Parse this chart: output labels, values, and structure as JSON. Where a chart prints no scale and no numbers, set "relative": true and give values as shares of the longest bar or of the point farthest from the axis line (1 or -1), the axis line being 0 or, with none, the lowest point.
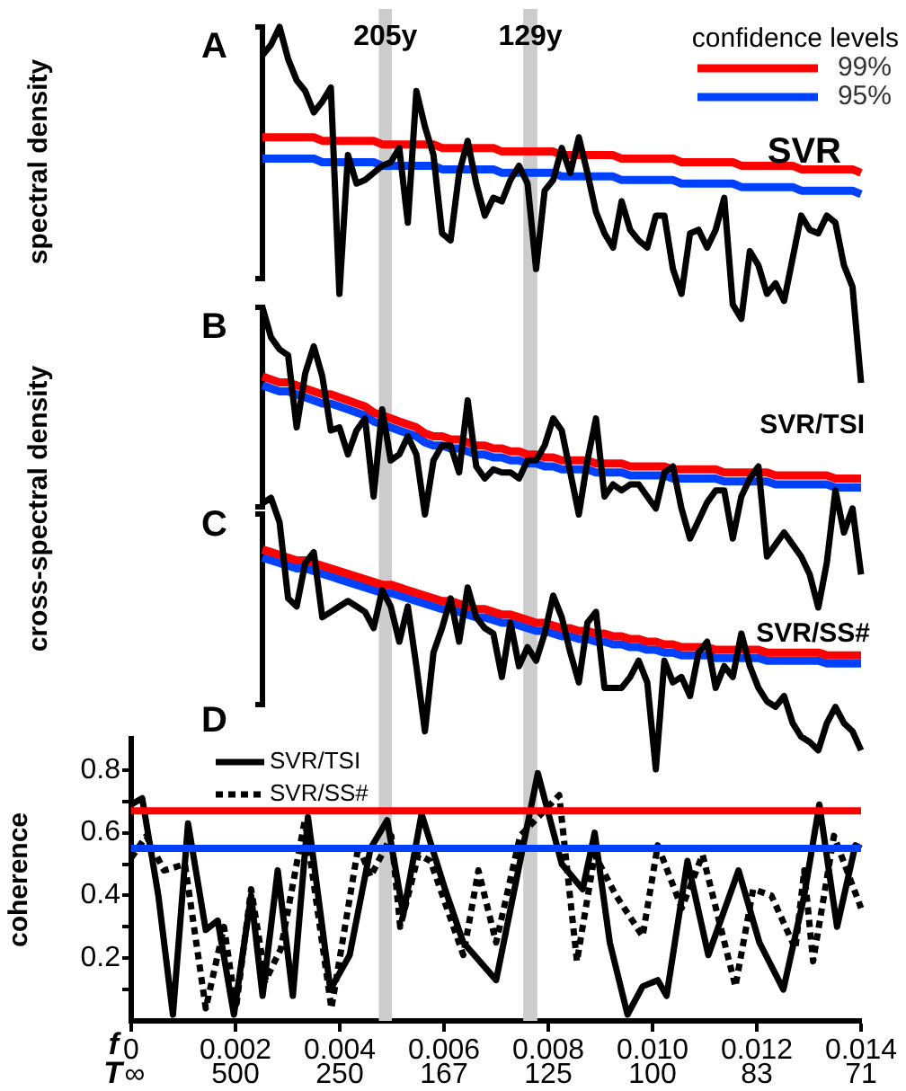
{
  "chart_data": [
    {
      "type": "line",
      "title": "A",
      "ylabel": "spectral density",
      "relative": true,
      "grid": false,
      "marker": "none",
      "legend": "top right",
      "legend_title": "confidence levels",
      "annotations": [
        "SVR"
      ],
      "categories": [
        null,
        null,
        null,
        null,
        null,
        null,
        null,
        null,
        null,
        null,
        null,
        null,
        null,
        null,
        null,
        null,
        null,
        null,
        null,
        null,
        null,
        null,
        null,
        null,
        null,
        null,
        null,
        null,
        null,
        null,
        null,
        null,
        null,
        null,
        null,
        null,
        null,
        null,
        null,
        null,
        null,
        null,
        null,
        null,
        null,
        null,
        null,
        null,
        null,
        null,
        null,
        null,
        null,
        null,
        null,
        null,
        null,
        null,
        null,
        null,
        null,
        null,
        null,
        null,
        null,
        null,
        null,
        null,
        null,
        null,
        null
      ],
      "series": [
        {
          "color": "#000000",
          "values": [
            0.92,
            0.95,
            1,
            0.91,
            0.85,
            0.82,
            0.76,
            0.79,
            0.83,
            0.25,
            0.64,
            0.56,
            0.57,
            0.59,
            0.61,
            0.62,
            0.66,
            0.45,
            0.82,
            0.72,
            0.64,
            0.42,
            0.4,
            0.59,
            0.68,
            0.56,
            0.47,
            0.52,
            0.51,
            0.57,
            0.61,
            0.56,
            0.32,
            0.54,
            0.57,
            0.66,
            0.59,
            0.69,
            0.59,
            0.48,
            0.42,
            0.38,
            0.51,
            0.43,
            0.4,
            0.38,
            0.47,
            0.47,
            0.32,
            0.25,
            0.42,
            0.43,
            0.38,
            0.43,
            0.52,
            0.22,
            0.18,
            0.37,
            0.33,
            0.25,
            0.28,
            0.23,
            0.35,
            0.47,
            0.43,
            0.42,
            0.47,
            0.45,
            0.33,
            0.27,
            0
          ]
        },
        {
          "name": "99%",
          "color": "#ff0000",
          "values": [
            0.69,
            0.69,
            0.69,
            0.69,
            0.69,
            0.69,
            0.69,
            0.68,
            0.68,
            0.68,
            0.68,
            0.68,
            0.68,
            0.68,
            0.67,
            0.67,
            0.67,
            0.67,
            0.67,
            0.67,
            0.67,
            0.66,
            0.66,
            0.66,
            0.66,
            0.66,
            0.66,
            0.66,
            0.65,
            0.65,
            0.65,
            0.65,
            0.65,
            0.65,
            0.65,
            0.64,
            0.64,
            0.64,
            0.64,
            0.64,
            0.64,
            0.64,
            0.63,
            0.63,
            0.63,
            0.63,
            0.63,
            0.63,
            0.63,
            0.62,
            0.62,
            0.62,
            0.62,
            0.62,
            0.62,
            0.62,
            0.61,
            0.61,
            0.61,
            0.61,
            0.61,
            0.61,
            0.61,
            0.6,
            0.6,
            0.6,
            0.6,
            0.6,
            0.6,
            0.6,
            0.59
          ]
        },
        {
          "name": "95%",
          "color": "#0040ff",
          "values": [
            0.63,
            0.63,
            0.63,
            0.63,
            0.63,
            0.63,
            0.63,
            0.62,
            0.62,
            0.62,
            0.62,
            0.62,
            0.62,
            0.62,
            0.61,
            0.61,
            0.61,
            0.61,
            0.61,
            0.61,
            0.61,
            0.6,
            0.6,
            0.6,
            0.6,
            0.6,
            0.6,
            0.6,
            0.59,
            0.59,
            0.59,
            0.59,
            0.59,
            0.59,
            0.59,
            0.58,
            0.58,
            0.58,
            0.58,
            0.58,
            0.58,
            0.58,
            0.57,
            0.57,
            0.57,
            0.57,
            0.57,
            0.57,
            0.57,
            0.56,
            0.56,
            0.56,
            0.56,
            0.56,
            0.56,
            0.56,
            0.55,
            0.55,
            0.55,
            0.55,
            0.55,
            0.55,
            0.55,
            0.54,
            0.54,
            0.54,
            0.54,
            0.54,
            0.54,
            0.54,
            0.53
          ]
        }
      ]
    },
    {
      "type": "line",
      "title": "B",
      "ylabel": "cross-spectral density",
      "relative": true,
      "grid": false,
      "marker": "none",
      "annotations": [
        "SVR/TSI"
      ],
      "categories": [
        null,
        null,
        null,
        null,
        null,
        null,
        null,
        null,
        null,
        null,
        null,
        null,
        null,
        null,
        null,
        null,
        null,
        null,
        null,
        null,
        null,
        null,
        null,
        null,
        null,
        null,
        null,
        null,
        null,
        null,
        null,
        null,
        null,
        null,
        null,
        null,
        null,
        null,
        null,
        null,
        null,
        null,
        null,
        null,
        null,
        null,
        null,
        null,
        null,
        null,
        null,
        null,
        null,
        null,
        null,
        null,
        null,
        null,
        null,
        null,
        null,
        null,
        null,
        null,
        null,
        null,
        null,
        null,
        null,
        null,
        null
      ],
      "series": [
        {
          "color": "#000000",
          "values": [
            1,
            0.9,
            0.86,
            0.84,
            0.6,
            0.78,
            0.87,
            0.77,
            0.59,
            0.6,
            0.51,
            0.59,
            0.63,
            0.37,
            0.66,
            0.49,
            0.51,
            0.57,
            0.51,
            0.31,
            0.49,
            0.54,
            0.54,
            0.45,
            0.69,
            0.47,
            0.43,
            0.46,
            0.45,
            0.45,
            0.43,
            0.49,
            0.49,
            0.54,
            0.63,
            0.59,
            0.45,
            0.31,
            0.49,
            0.63,
            0.37,
            0.41,
            0.39,
            0.41,
            0.41,
            0.37,
            0.33,
            0.45,
            0.47,
            0.33,
            0.23,
            0.29,
            0.35,
            0.39,
            0.39,
            0.23,
            0.37,
            0.43,
            0.47,
            0.17,
            0.21,
            0.25,
            0.21,
            0.17,
            0.11,
            0,
            0.15,
            0.39,
            0.25,
            0.33,
            0.11
          ]
        },
        {
          "color": "#ff0000",
          "values": [
            0.77,
            0.76,
            0.75,
            0.75,
            0.74,
            0.73,
            0.72,
            0.71,
            0.71,
            0.7,
            0.69,
            0.68,
            0.67,
            0.65,
            0.64,
            0.63,
            0.62,
            0.61,
            0.6,
            0.58,
            0.57,
            0.57,
            0.56,
            0.56,
            0.55,
            0.54,
            0.54,
            0.53,
            0.53,
            0.52,
            0.52,
            0.51,
            0.51,
            0.5,
            0.5,
            0.49,
            0.49,
            0.49,
            0.49,
            0.48,
            0.48,
            0.48,
            0.48,
            0.47,
            0.47,
            0.47,
            0.47,
            0.47,
            0.46,
            0.46,
            0.46,
            0.46,
            0.46,
            0.46,
            0.45,
            0.45,
            0.45,
            0.45,
            0.45,
            0.45,
            0.44,
            0.44,
            0.44,
            0.44,
            0.44,
            0.44,
            0.44,
            0.43,
            0.43,
            0.43,
            0.43
          ]
        },
        {
          "color": "#0040ff",
          "values": [
            0.74,
            0.73,
            0.72,
            0.72,
            0.71,
            0.7,
            0.69,
            0.68,
            0.68,
            0.67,
            0.66,
            0.65,
            0.64,
            0.62,
            0.61,
            0.6,
            0.59,
            0.58,
            0.57,
            0.55,
            0.54,
            0.54,
            0.53,
            0.53,
            0.52,
            0.51,
            0.51,
            0.5,
            0.5,
            0.49,
            0.49,
            0.48,
            0.48,
            0.47,
            0.47,
            0.46,
            0.46,
            0.46,
            0.46,
            0.45,
            0.45,
            0.45,
            0.45,
            0.44,
            0.44,
            0.44,
            0.44,
            0.44,
            0.43,
            0.43,
            0.43,
            0.43,
            0.43,
            0.43,
            0.42,
            0.42,
            0.42,
            0.42,
            0.42,
            0.42,
            0.41,
            0.41,
            0.41,
            0.41,
            0.41,
            0.41,
            0.41,
            0.4,
            0.4,
            0.4,
            0.4
          ]
        }
      ]
    },
    {
      "type": "line",
      "title": "C",
      "relative": true,
      "grid": false,
      "marker": "none",
      "annotations": [
        "SVR/SS#"
      ],
      "categories": [
        null,
        null,
        null,
        null,
        null,
        null,
        null,
        null,
        null,
        null,
        null,
        null,
        null,
        null,
        null,
        null,
        null,
        null,
        null,
        null,
        null,
        null,
        null,
        null,
        null,
        null,
        null,
        null,
        null,
        null,
        null,
        null,
        null,
        null,
        null,
        null,
        null,
        null,
        null,
        null,
        null,
        null,
        null,
        null,
        null,
        null,
        null,
        null,
        null,
        null,
        null,
        null,
        null,
        null,
        null,
        null,
        null,
        null,
        null,
        null,
        null,
        null,
        null,
        null,
        null,
        null,
        null,
        null,
        null,
        null,
        null
      ],
      "series": [
        {
          "color": "#000000",
          "values": [
            0.98,
            1,
            0.91,
            0.63,
            0.6,
            0.76,
            0.8,
            0.56,
            0.58,
            0.6,
            0.62,
            0.6,
            0.58,
            0.52,
            0.66,
            0.6,
            0.47,
            0.6,
            0.38,
            0.14,
            0.43,
            0.52,
            0.63,
            0.47,
            0.67,
            0.56,
            0.52,
            0.5,
            0.34,
            0.54,
            0.38,
            0.45,
            0.4,
            0.5,
            0.64,
            0.56,
            0.43,
            0.32,
            0.54,
            0.58,
            0.3,
            0.3,
            0.3,
            0.34,
            0.4,
            0.32,
            0,
            0.4,
            0.32,
            0.34,
            0.27,
            0.43,
            0.47,
            0.3,
            0.38,
            0.34,
            0.5,
            0.38,
            0.3,
            0.25,
            0.23,
            0.27,
            0.17,
            0.12,
            0.1,
            0.07,
            0.17,
            0.23,
            0.17,
            0.14,
            0.07
          ]
        },
        {
          "color": "#ff0000",
          "values": [
            0.81,
            0.8,
            0.79,
            0.78,
            0.77,
            0.77,
            0.76,
            0.75,
            0.74,
            0.73,
            0.72,
            0.71,
            0.7,
            0.69,
            0.68,
            0.68,
            0.67,
            0.66,
            0.65,
            0.64,
            0.63,
            0.62,
            0.62,
            0.61,
            0.6,
            0.59,
            0.59,
            0.58,
            0.57,
            0.57,
            0.56,
            0.55,
            0.54,
            0.54,
            0.53,
            0.52,
            0.52,
            0.51,
            0.51,
            0.5,
            0.5,
            0.49,
            0.49,
            0.48,
            0.48,
            0.47,
            0.47,
            0.46,
            0.46,
            0.45,
            0.45,
            0.45,
            0.45,
            0.44,
            0.44,
            0.44,
            0.44,
            0.44,
            0.44,
            0.43,
            0.43,
            0.43,
            0.43,
            0.43,
            0.43,
            0.43,
            0.42,
            0.42,
            0.42,
            0.42,
            0.42
          ]
        },
        {
          "color": "#0040ff",
          "values": [
            0.78,
            0.77,
            0.76,
            0.75,
            0.74,
            0.74,
            0.73,
            0.72,
            0.71,
            0.7,
            0.69,
            0.68,
            0.67,
            0.66,
            0.65,
            0.65,
            0.64,
            0.63,
            0.62,
            0.61,
            0.6,
            0.59,
            0.59,
            0.58,
            0.57,
            0.56,
            0.56,
            0.55,
            0.54,
            0.54,
            0.53,
            0.52,
            0.51,
            0.51,
            0.5,
            0.49,
            0.49,
            0.48,
            0.48,
            0.47,
            0.47,
            0.46,
            0.46,
            0.45,
            0.45,
            0.44,
            0.44,
            0.43,
            0.43,
            0.42,
            0.42,
            0.42,
            0.42,
            0.41,
            0.41,
            0.41,
            0.41,
            0.41,
            0.41,
            0.4,
            0.4,
            0.4,
            0.4,
            0.4,
            0.4,
            0.4,
            0.39,
            0.39,
            0.39,
            0.39,
            0.39
          ]
        }
      ]
    },
    {
      "type": "line",
      "title": "D",
      "ylabel": "coherence",
      "xlabel": "f",
      "xlim": [
        0,
        0.014
      ],
      "ylim": [
        0,
        0.9
      ],
      "grid": false,
      "marker": "none",
      "legend": "top left",
      "xticks": [
        0,
        0.002,
        0.004,
        0.006,
        0.008,
        {
          "value": 0.01,
          "label": "0.010"
        },
        0.012,
        0.014
      ],
      "yticks": [
        {
          "value": 0.1,
          "label": null
        },
        0.2,
        {
          "value": 0.3,
          "label": null
        },
        0.4,
        {
          "value": 0.5,
          "label": null
        },
        0.6,
        {
          "value": 0.7,
          "label": null
        },
        0.8
      ],
      "annotations": [
        "T",
        "∞",
        "500",
        "250",
        "167",
        "125",
        "100",
        "83",
        "71"
      ],
      "bands": [
        {
          "axis": "x",
          "from": 0.00475,
          "to": 0.005,
          "label": "205y",
          "color": "#cccccc"
        },
        {
          "axis": "x",
          "from": 0.00752,
          "to": 0.00779,
          "label": "129y",
          "color": "#cccccc"
        }
      ],
      "ref_lines": [
        {
          "axis": "y",
          "value": 0.67,
          "color": "#ff0000"
        },
        {
          "axis": "y",
          "value": 0.55,
          "color": "#0040ff"
        }
      ],
      "series": [
        {
          "name": "SVR/TSI",
          "color": "#000000",
          "line_style": "solid",
          "x": [
            0,
            0.00021,
            0.00052,
            0.0008,
            0.00109,
            0.00143,
            0.00166,
            0.00197,
            0.0023,
            0.00252,
            0.00281,
            0.0031,
            0.00339,
            0.00382,
            0.00419,
            0.00459,
            0.00491,
            0.00522,
            0.00557,
            0.00602,
            0.00637,
            0.007,
            0.0078,
            0.00826,
            0.00866,
            0.00889,
            0.00918,
            0.00952,
            0.00981,
            0.0101,
            0.01027,
            0.01067,
            0.01107,
            0.01165,
            0.01205,
            0.01251,
            0.01291,
            0.0132,
            0.01354,
            0.01389,
            0.014
          ],
          "values": [
            0.69,
            0.71,
            0.4,
            0.02,
            0.63,
            0.29,
            0.32,
            0.02,
            0.4,
            0.08,
            0.48,
            0.08,
            0.65,
            0.1,
            0.21,
            0.55,
            0.64,
            0.34,
            0.66,
            0.42,
            0.25,
            0.13,
            0.79,
            0.5,
            0.42,
            0.6,
            0.25,
            0.02,
            0.11,
            0.13,
            0.08,
            0.51,
            0.21,
            0.48,
            0.25,
            0.1,
            0.4,
            0.69,
            0.3,
            0.56,
            0.55
          ]
        },
        {
          "name": "SVR/SS#",
          "color": "#000000",
          "line_style": "dotted",
          "x": [
            0,
            0.00029,
            0.00063,
            0.00103,
            0.00143,
            0.00178,
            0.00201,
            0.0023,
            0.00258,
            0.00287,
            0.00333,
            0.00384,
            0.00436,
            0.00459,
            0.00499,
            0.00516,
            0.00551,
            0.00574,
            0.00637,
            0.00666,
            0.007,
            0.00746,
            0.00821,
            0.00855,
            0.00889,
            0.0093,
            0.00981,
            0.0101,
            0.01056,
            0.01096,
            0.01159,
            0.01193,
            0.01228,
            0.01274,
            0.01291,
            0.01308,
            0.01348,
            0.014
          ],
          "values": [
            0.52,
            0.59,
            0.48,
            0.5,
            0.04,
            0.3,
            0.04,
            0.42,
            0.13,
            0.23,
            0.64,
            0.04,
            0.56,
            0.46,
            0.59,
            0.3,
            0.53,
            0.51,
            0.21,
            0.48,
            0.25,
            0.59,
            0.72,
            0.19,
            0.53,
            0.4,
            0.27,
            0.56,
            0.36,
            0.53,
            0.11,
            0.42,
            0.4,
            0.23,
            0.48,
            0.19,
            0.59,
            0.36
          ]
        }
      ]
    }
  ]
}
